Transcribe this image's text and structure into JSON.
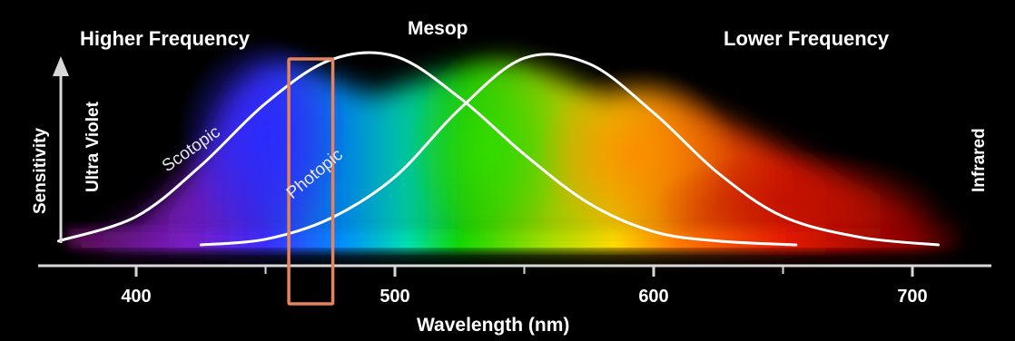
{
  "chart_data": {
    "type": "line",
    "header_left": "Higher Frequency",
    "header_center": "Mesop",
    "header_right": "Lower Frequency",
    "xlabel": "Wavelength (nm)",
    "ylabel": "Sensitivity",
    "left_edge_label": "Ultra Violet",
    "right_edge_label": "Infrared",
    "x_ticks": [
      400,
      500,
      600,
      700
    ],
    "xlim": [
      365,
      730
    ],
    "ylim": [
      0,
      1
    ],
    "series": [
      {
        "name": "Scotopic",
        "color": "#ffffff",
        "x": [
          370,
          400,
          425,
          450,
          475,
          500,
          525,
          550,
          575,
          600,
          625,
          655
        ],
        "y": [
          0.02,
          0.15,
          0.42,
          0.75,
          0.98,
          1.0,
          0.78,
          0.48,
          0.22,
          0.07,
          0.02,
          0.0
        ]
      },
      {
        "name": "Photopic",
        "color": "#ffffff",
        "x": [
          425,
          450,
          475,
          500,
          525,
          550,
          575,
          600,
          625,
          650,
          680,
          710
        ],
        "y": [
          0.0,
          0.03,
          0.14,
          0.36,
          0.72,
          0.99,
          0.96,
          0.7,
          0.38,
          0.15,
          0.04,
          0.0
        ]
      }
    ],
    "highlight": {
      "x_range": [
        459,
        476
      ],
      "color": "#e8825a"
    },
    "spectrum_colors": [
      {
        "nm": 380,
        "hex": "#5a0f5a"
      },
      {
        "nm": 420,
        "hex": "#7a1cc8"
      },
      {
        "nm": 450,
        "hex": "#3c2cff"
      },
      {
        "nm": 480,
        "hex": "#0090ff"
      },
      {
        "nm": 505,
        "hex": "#00e0b0"
      },
      {
        "nm": 525,
        "hex": "#10d800"
      },
      {
        "nm": 560,
        "hex": "#a8e000"
      },
      {
        "nm": 585,
        "hex": "#ffd800"
      },
      {
        "nm": 610,
        "hex": "#ff7800"
      },
      {
        "nm": 650,
        "hex": "#e81a00"
      },
      {
        "nm": 700,
        "hex": "#8a0000"
      },
      {
        "nm": 725,
        "hex": "#1a0000"
      }
    ]
  }
}
